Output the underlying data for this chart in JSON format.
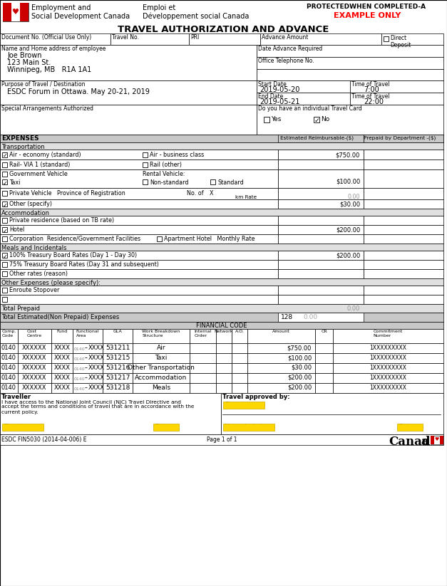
{
  "title": "TRAVEL AUTHORIZATION AND ADVANCE",
  "protected_text": "PROTECTEDWHEN COMPLETED-A",
  "example_text": "EXAMPLE ONLY",
  "gov_name_en": "Employment and\nSocial Development Canada",
  "gov_name_fr": "Emploi et\nDéveloppement social Canada",
  "employee_name": "Joe Brown",
  "employee_address1": "123 Main St.",
  "employee_address2": "Winnipeg, MB   R1A 1A1",
  "purpose": "ESDC Forum in Ottawa. May 20-21, 2019",
  "start_date": "2019-05-20",
  "start_time": "7:00",
  "end_date": "2019-05-21",
  "end_time": "22:00",
  "financial_rows": [
    {
      "gla": "531211",
      "desc": "Air",
      "amount": "$750.00"
    },
    {
      "gla": "531215",
      "desc": "Taxi",
      "amount": "$100.00"
    },
    {
      "gla": "531216",
      "desc": "Other Transportation",
      "amount": "$30.00"
    },
    {
      "gla": "531217",
      "desc": "Accommodation",
      "amount": "$200.00"
    },
    {
      "gla": "531218",
      "desc": "Meals",
      "amount": "$200.00"
    }
  ],
  "total_estimated": "128",
  "total_estimated_cents": "0.00",
  "total_prepaid_zero": "0.00",
  "header_bg": "#c8c8c8",
  "section_bg": "#e0e0e0",
  "white": "#ffffff",
  "red_text": "#ff0000",
  "yellow_highlight": "#FFD700",
  "canada_red": "#cc0000",
  "border_color": "#000000",
  "traveller_text": "I have access to the National Joint Council (NJC) Travel Directive and\naccept the terms and conditions of travel that are in accordance with the\ncurrent policy.",
  "footer_left": "ESDC FIN5030 (2014-04-006) E",
  "footer_center": "Page 1 of 1"
}
